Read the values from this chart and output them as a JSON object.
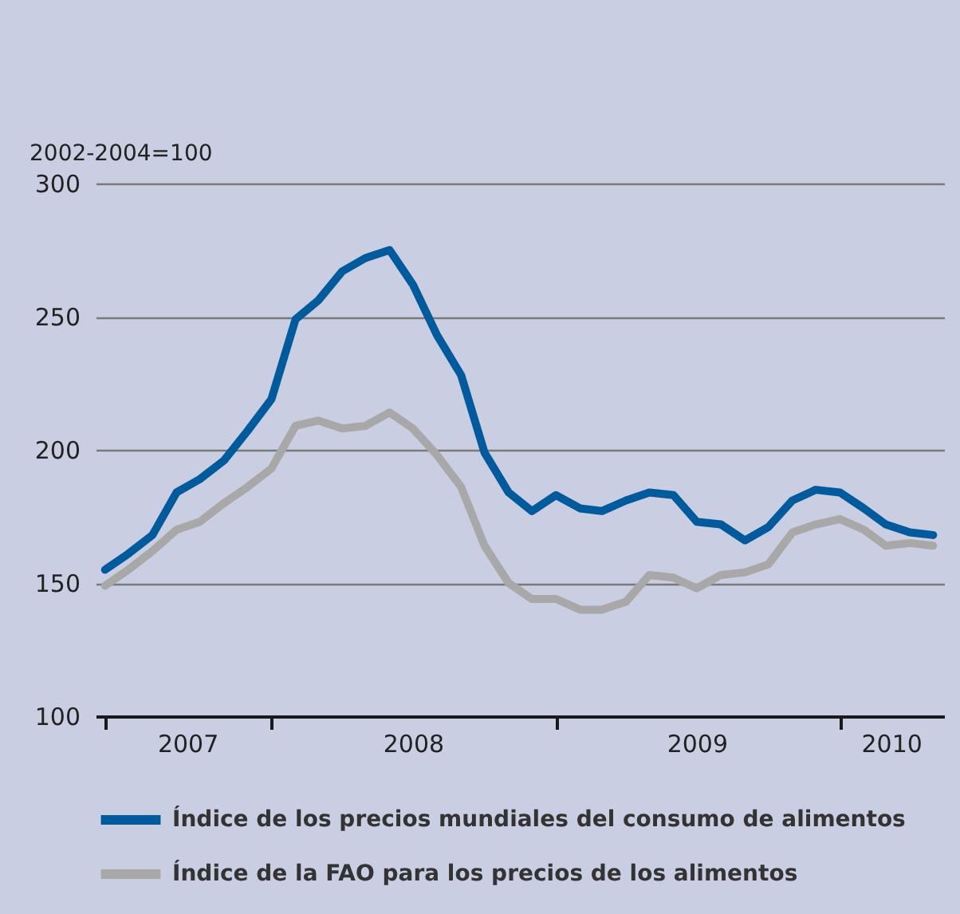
{
  "chart_data": {
    "type": "line",
    "ylabel": "2002-2004=100",
    "x": [
      "2007-06",
      "2007-07",
      "2007-08",
      "2007-09",
      "2007-10",
      "2007-11",
      "2007-12",
      "2008-01",
      "2008-02",
      "2008-03",
      "2008-04",
      "2008-05",
      "2008-06",
      "2008-07",
      "2008-08",
      "2008-09",
      "2008-10",
      "2008-11",
      "2008-12",
      "2009-01",
      "2009-02",
      "2009-03",
      "2009-04",
      "2009-05",
      "2009-06",
      "2009-07",
      "2009-08",
      "2009-09",
      "2009-10",
      "2009-11",
      "2009-12",
      "2010-01",
      "2010-02",
      "2010-03",
      "2010-04",
      "2010-05"
    ],
    "series": [
      {
        "name": "Índice de los precios mundiales del consumo de alimentos",
        "color": "#005a9c",
        "values": [
          155,
          161,
          168,
          184,
          189,
          196,
          207,
          219,
          249,
          256,
          267,
          272,
          275,
          262,
          243,
          228,
          199,
          184,
          177,
          183,
          178,
          177,
          181,
          184,
          183,
          173,
          172,
          166,
          171,
          181,
          185,
          184,
          178,
          172,
          169,
          168
        ]
      },
      {
        "name": "Índice de la FAO para los precios de los alimentos",
        "color": "#a8a8a8",
        "values": [
          149,
          155,
          162,
          170,
          173,
          180,
          186,
          193,
          209,
          211,
          208,
          209,
          214,
          208,
          198,
          186,
          164,
          150,
          144,
          144,
          140,
          140,
          143,
          153,
          152,
          148,
          153,
          154,
          157,
          169,
          172,
          174,
          170,
          164,
          165,
          164
        ]
      }
    ],
    "xlim": [
      "2007-05-20",
      "2010-05-15"
    ],
    "xticks": [
      {
        "value": "2007-06-01",
        "label": null
      },
      {
        "value": "2007-09-15",
        "label": "2007"
      },
      {
        "value": "2008-01-01",
        "label": null
      },
      {
        "value": "2008-07-01",
        "label": "2008"
      },
      {
        "value": "2009-01-01",
        "label": null
      },
      {
        "value": "2009-07-01",
        "label": "2009"
      },
      {
        "value": "2010-01-01",
        "label": null
      },
      {
        "value": "2010-03-08",
        "label": "2010"
      }
    ],
    "ylim": [
      100,
      300
    ],
    "yticks": [
      100,
      150,
      200,
      250,
      300
    ],
    "grid": "y",
    "legend": "bottom",
    "marker": "none",
    "line_style": "solid"
  }
}
